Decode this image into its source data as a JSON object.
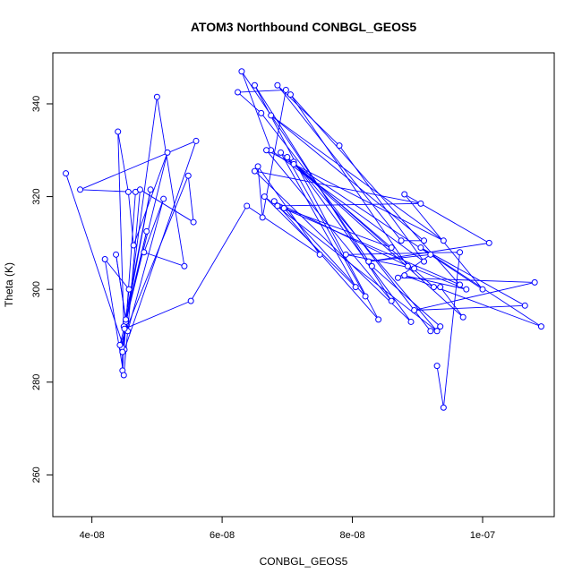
{
  "chart_data": {
    "type": "line",
    "title": "ATOM3 Northbound CONBGL_GEOS5",
    "xlabel": "CONBGL_GEOS5",
    "ylabel": "Theta (K)",
    "xlim": [
      3.4e-08,
      1.11e-07
    ],
    "ylim": [
      251,
      351
    ],
    "xticks": [
      4e-08,
      6e-08,
      8e-08,
      1e-07
    ],
    "xtick_labels": [
      "4e-08",
      "6e-08",
      "8e-08",
      "1e-07"
    ],
    "yticks": [
      260,
      280,
      300,
      320,
      340
    ],
    "ytick_labels": [
      "260",
      "280",
      "300",
      "320",
      "340"
    ],
    "grid": false,
    "legend": "none",
    "series_color": "#0000ff",
    "series": [
      {
        "x": [
          3.6e-08,
          4.5e-08,
          5.6e-08,
          3.82e-08,
          4.67e-08,
          4.47e-08,
          4.46e-08,
          4.52e-08,
          4.9e-08,
          4.49e-08,
          4.4e-08,
          4.56e-08,
          4.64e-08,
          5.16e-08,
          4.43e-08,
          5.48e-08,
          5.56e-08,
          4.74e-08,
          4.49e-08,
          4.2e-08,
          4.57e-08,
          4.47e-08,
          5e-08,
          5.42e-08,
          4.8e-08,
          5.1e-08,
          4.55e-08,
          4.37e-08,
          4.52e-08,
          4.84e-08,
          4.5e-08,
          5.52e-08,
          6.38e-08,
          7.5e-08,
          6.55e-08,
          6.62e-08,
          6.98e-08,
          6.24e-08,
          6.6e-08,
          9.2e-08,
          9.35e-08,
          8.3e-08,
          6.3e-08,
          6.75e-08,
          9.1e-08,
          7.8e-08,
          6.85e-08,
          8.75e-08,
          9.1e-08,
          6.75e-08,
          9.4e-08,
          6.68e-08,
          8.6e-08,
          6.5e-08,
          8.4e-08,
          6.8e-08,
          8.85e-08,
          7.05e-08,
          9.65e-08,
          6.85e-08,
          9.05e-08,
          6.5e-08,
          8.9e-08,
          7.1e-08,
          9.3e-08,
          6.65e-08,
          8.05e-08,
          6.9e-08,
          9.7e-08,
          9.35e-08,
          9.25e-08,
          7e-08,
          8.2e-08,
          6.95e-08,
          8.6e-08,
          7.1e-08,
          1e-07,
          8.8e-08,
          1.01e-07,
          8.25e-08,
          9.2e-08,
          8.7e-08,
          1.08e-07,
          8.95e-08,
          1.065e-07,
          9.05e-08,
          1.09e-07,
          8.8e-08,
          9.75e-08,
          8.95e-08,
          7.9e-08,
          9.65e-08,
          9.4e-08,
          9.3e-08
        ]
      }
    ],
    "y_values": [
      325,
      287,
      332,
      321.5,
      321,
      282.5,
      287.5,
      293,
      321.5,
      292,
      334,
      321,
      309.5,
      329.5,
      288,
      324.5,
      314.5,
      321.5,
      281.5,
      306.5,
      300,
      286.5,
      341.5,
      305,
      308,
      319.5,
      291,
      307.5,
      293.5,
      312.5,
      291.5,
      297.5,
      318,
      307.5,
      326.5,
      315.5,
      343,
      342.5,
      338,
      291,
      292,
      305,
      347,
      330,
      306,
      331,
      344,
      310.5,
      310.5,
      337.5,
      310.5,
      330,
      297.5,
      344,
      293.5,
      319,
      305,
      342,
      301,
      318,
      318.5,
      325.5,
      293,
      327.5,
      291,
      320,
      300.5,
      329.5,
      294,
      300.5,
      300.5,
      328.5,
      298.5,
      317.5,
      309,
      327,
      300,
      320.5,
      310,
      306,
      307.5,
      302.5,
      301.5,
      295.5,
      296.5,
      309,
      292,
      303,
      300,
      304.5,
      307.5,
      308,
      274.5,
      283.5
    ]
  }
}
